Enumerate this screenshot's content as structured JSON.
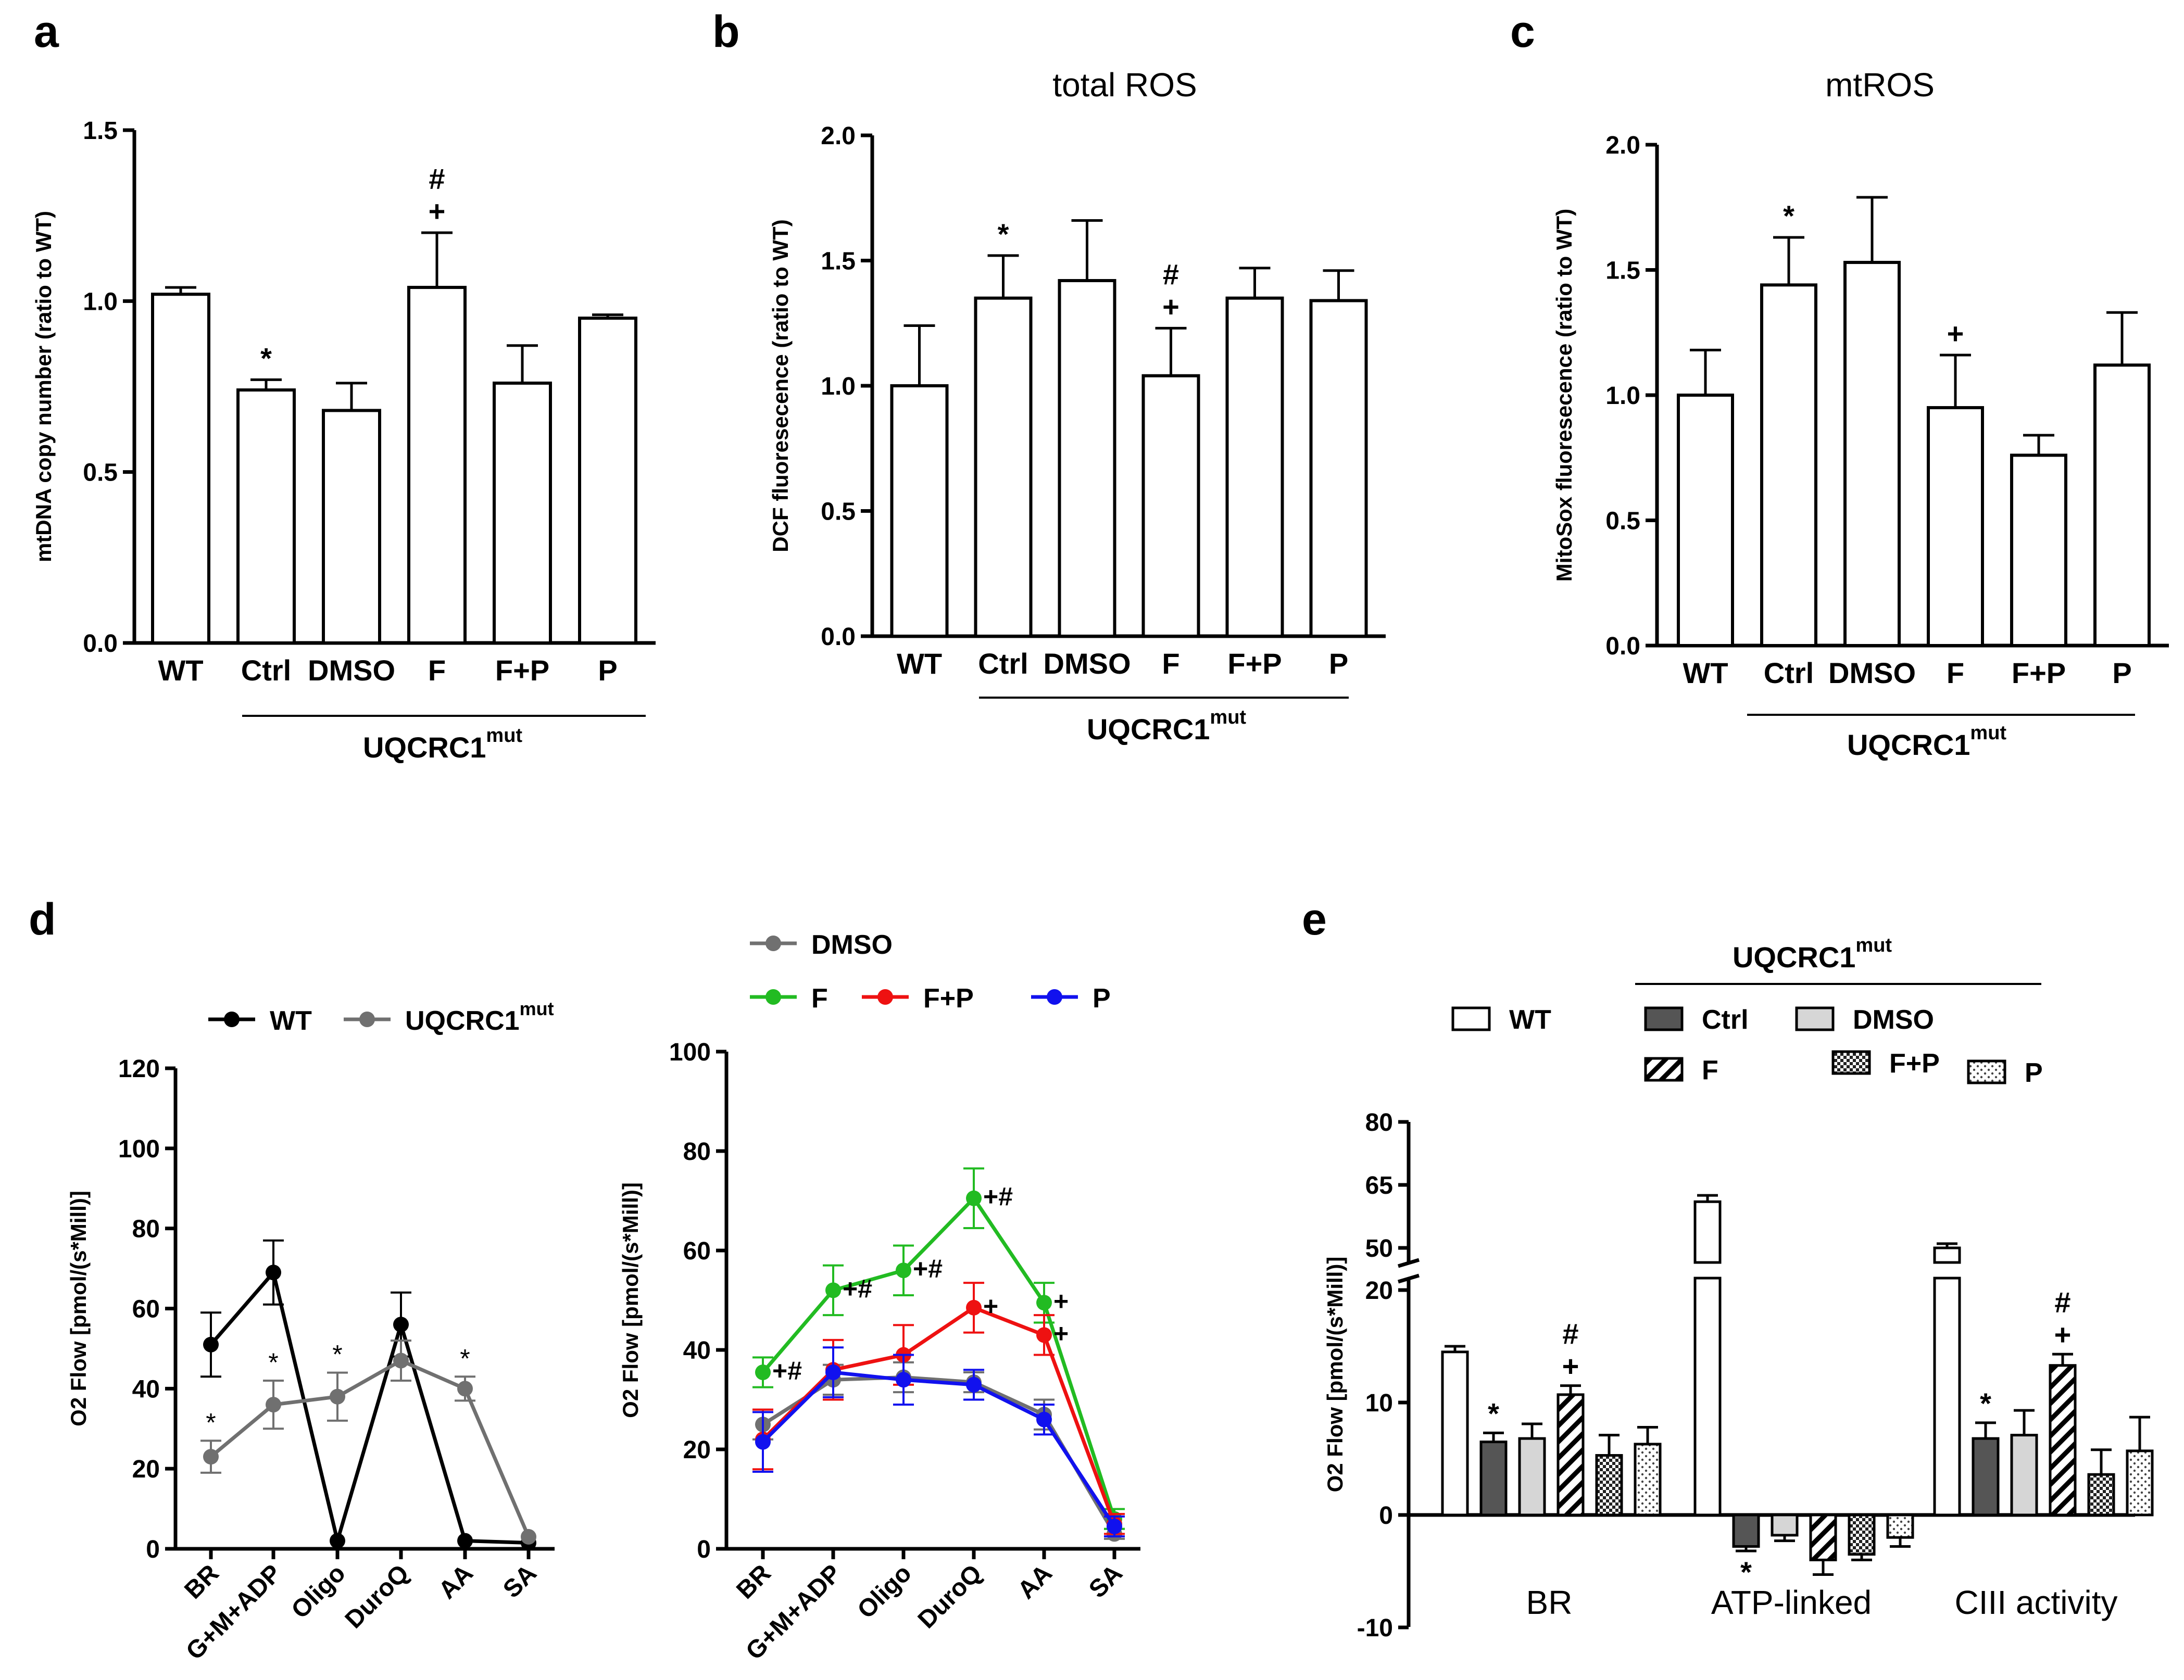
{
  "chart_data": [
    {
      "id": "a",
      "type": "bar",
      "panel_label": "a",
      "title": "",
      "ylabel": "mtDNA copy number (ratio to WT)",
      "ylim": [
        0,
        1.5
      ],
      "yticks": [
        "0.0",
        "0.5",
        "1.0",
        "1.5"
      ],
      "categories": [
        "WT",
        "Ctrl",
        "DMSO",
        "F",
        "F+P",
        "P"
      ],
      "values": [
        1.02,
        0.74,
        0.68,
        1.04,
        0.76,
        0.95
      ],
      "errors": [
        0.02,
        0.03,
        0.08,
        0.16,
        0.11,
        0.01
      ],
      "annotations": [
        {
          "category": "Ctrl",
          "text": "*"
        },
        {
          "category": "F",
          "text": "+"
        },
        {
          "category": "F",
          "text": "#"
        }
      ],
      "group_label": "UQCRC1",
      "group_sup": "mut"
    },
    {
      "id": "b",
      "type": "bar",
      "panel_label": "b",
      "title": "total ROS",
      "ylabel": "DCF fluoresecence (ratio to WT)",
      "ylim": [
        0,
        2.0
      ],
      "yticks": [
        "0.0",
        "0.5",
        "1.0",
        "1.5",
        "2.0"
      ],
      "categories": [
        "WT",
        "Ctrl",
        "DMSO",
        "F",
        "F+P",
        "P"
      ],
      "values": [
        1.0,
        1.35,
        1.42,
        1.04,
        1.35,
        1.34
      ],
      "errors": [
        0.24,
        0.17,
        0.24,
        0.19,
        0.12,
        0.12
      ],
      "annotations": [
        {
          "category": "Ctrl",
          "text": "*"
        },
        {
          "category": "F",
          "text": "+"
        },
        {
          "category": "F",
          "text": "#"
        }
      ],
      "group_label": "UQCRC1",
      "group_sup": "mut"
    },
    {
      "id": "c",
      "type": "bar",
      "panel_label": "c",
      "title": "mtROS",
      "ylabel": "MitoSox fluoresecence (ratio to WT)",
      "ylim": [
        0,
        2.0
      ],
      "yticks": [
        "0.0",
        "0.5",
        "1.0",
        "1.5",
        "2.0"
      ],
      "categories": [
        "WT",
        "Ctrl",
        "DMSO",
        "F",
        "F+P",
        "P"
      ],
      "values": [
        1.0,
        1.44,
        1.53,
        0.95,
        0.76,
        1.12
      ],
      "errors": [
        0.18,
        0.19,
        0.26,
        0.21,
        0.08,
        0.21
      ],
      "annotations": [
        {
          "category": "Ctrl",
          "text": "*"
        },
        {
          "category": "F",
          "text": "+"
        }
      ],
      "group_label": "UQCRC1",
      "group_sup": "mut"
    },
    {
      "id": "d1",
      "type": "line",
      "panel_label": "d",
      "ylabel": "O2 Flow [pmol/(s*Mill)]",
      "ylim": [
        0,
        120
      ],
      "yticks": [
        "0",
        "20",
        "40",
        "60",
        "80",
        "100",
        "120"
      ],
      "categories": [
        "BR",
        "G+M+ADP",
        "Oligo",
        "DuroQ",
        "AA",
        "SA"
      ],
      "series": [
        {
          "name": "WT",
          "color": "#000000",
          "values": [
            51,
            69,
            2,
            56,
            2,
            1.5
          ],
          "errors": [
            8,
            8,
            0,
            8,
            0,
            0
          ]
        },
        {
          "name": "UQCRC1",
          "sup": "mut",
          "color": "#707070",
          "values": [
            23,
            36,
            38,
            47,
            40,
            3
          ],
          "errors": [
            4,
            6,
            6,
            5,
            3,
            0
          ],
          "marks": [
            "*",
            "*",
            "*",
            "",
            "*",
            ""
          ]
        }
      ]
    },
    {
      "id": "d2",
      "type": "line",
      "ylabel": "O2 Flow [pmol/(s*Mill)]",
      "ylim": [
        0,
        100
      ],
      "yticks": [
        "0",
        "20",
        "40",
        "60",
        "80",
        "100"
      ],
      "categories": [
        "BR",
        "G+M+ADP",
        "Oligo",
        "DuroQ",
        "AA",
        "SA"
      ],
      "series": [
        {
          "name": "DMSO",
          "color": "#707070",
          "values": [
            25,
            34,
            34.5,
            33.5,
            27,
            3
          ],
          "errors": [
            3,
            3,
            3,
            2,
            3,
            1
          ],
          "marks": [
            "",
            "",
            "",
            "",
            "",
            ""
          ]
        },
        {
          "name": "F",
          "color": "#22bb22",
          "values": [
            35.5,
            52,
            56,
            70.5,
            49.5,
            6
          ],
          "errors": [
            3,
            5,
            5,
            6,
            4,
            2
          ],
          "marks": [
            "+#",
            "+#",
            "+#",
            "+#",
            "+",
            ""
          ]
        },
        {
          "name": "F+P",
          "color": "#ee1111",
          "values": [
            22,
            36,
            39,
            48.5,
            43,
            5
          ],
          "errors": [
            6,
            6,
            6,
            5,
            4,
            2
          ],
          "marks": [
            "",
            "",
            "",
            "+",
            "+",
            ""
          ]
        },
        {
          "name": "P",
          "color": "#1111ee",
          "values": [
            21.5,
            35.5,
            34,
            33,
            26,
            4.5
          ],
          "errors": [
            6,
            5,
            5,
            3,
            3,
            2
          ],
          "marks": [
            "",
            "",
            "",
            "",
            "",
            ""
          ]
        }
      ]
    },
    {
      "id": "e",
      "type": "bar",
      "panel_label": "e",
      "ylabel": "O2 Flow [pmol/(s*Mill)]",
      "yticks_lower": [
        "-10",
        "0",
        "10",
        "20"
      ],
      "yticks_upper": [
        "50",
        "65",
        "80"
      ],
      "groups": [
        "BR",
        "ATP-linked",
        "CIII activity"
      ],
      "series_names": [
        "WT",
        "Ctrl",
        "DMSO",
        "F",
        "F+P",
        "P"
      ],
      "values": [
        [
          14.5,
          6.5,
          6.8,
          10.7,
          5.3,
          6.3
        ],
        [
          61,
          -2.8,
          -1.8,
          -4.0,
          -3.5,
          -2.0
        ],
        [
          50,
          6.8,
          7.1,
          13.3,
          3.6,
          5.7
        ]
      ],
      "errors": [
        [
          0.5,
          0.8,
          1.3,
          0.8,
          1.8,
          1.5
        ],
        [
          1.5,
          0.4,
          0.5,
          1.3,
          0.5,
          0.8
        ],
        [
          1.0,
          1.4,
          2.2,
          1.0,
          2.2,
          3.0
        ]
      ],
      "annotations": [
        {
          "group": "BR",
          "series": "Ctrl",
          "text": "*"
        },
        {
          "group": "BR",
          "series": "F",
          "text": "+"
        },
        {
          "group": "BR",
          "series": "F",
          "text": "#"
        },
        {
          "group": "ATP-linked",
          "series": "Ctrl",
          "text": "*"
        },
        {
          "group": "CIII activity",
          "series": "Ctrl",
          "text": "*"
        },
        {
          "group": "CIII activity",
          "series": "F",
          "text": "+"
        },
        {
          "group": "CIII activity",
          "series": "F",
          "text": "#"
        }
      ],
      "legend_group_label": "UQCRC1",
      "legend_group_sup": "mut"
    }
  ]
}
